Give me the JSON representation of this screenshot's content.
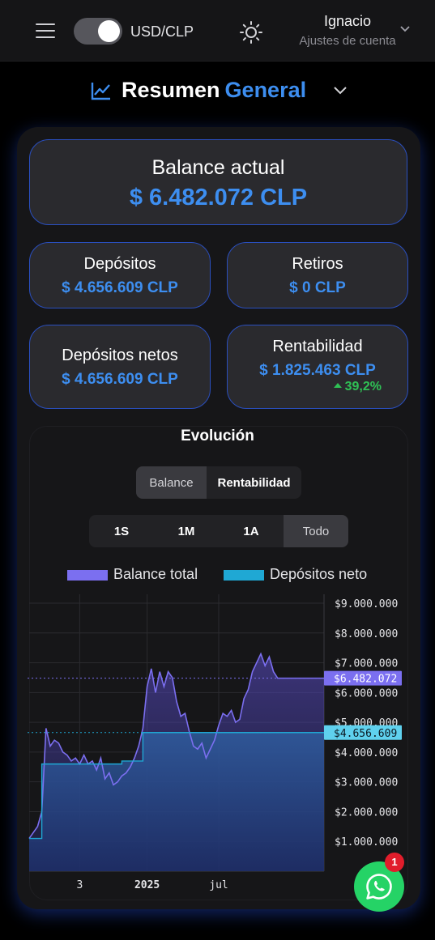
{
  "header": {
    "currency_label": "USD/CLP",
    "user_name": "Ignacio",
    "account_settings": "Ajustes de cuenta",
    "icons": [
      "menu-icon",
      "sun-icon",
      "chevron-down-icon"
    ]
  },
  "title": {
    "part1": "Resumen",
    "part2": "General",
    "icon": "trend-line-icon",
    "accent_color": "#3d8ef0"
  },
  "stats": {
    "balance": {
      "label": "Balance actual",
      "value": "$ 6.482.072 CLP"
    },
    "deposits": {
      "label": "Depósitos",
      "value": "$ 4.656.609 CLP"
    },
    "withdrawals": {
      "label": "Retiros",
      "value": "$ 0 CLP"
    },
    "net_deposits": {
      "label": "Depósitos netos",
      "value": "$ 4.656.609 CLP"
    },
    "profitability": {
      "label": "Rentabilidad",
      "value": "$ 1.825.463 CLP",
      "change": "39,2%",
      "change_color": "#2fc155"
    }
  },
  "evolution": {
    "title": "Evolución",
    "view_tabs": [
      "Balance",
      "Rentabilidad"
    ],
    "active_view": "Balance",
    "range_tabs": [
      "1S",
      "1M",
      "1A",
      "Todo"
    ],
    "active_range": "Todo",
    "legend": [
      {
        "label": "Balance total",
        "color": "#7b6ff0"
      },
      {
        "label": "Depósitos neto",
        "color": "#1fa8d4"
      }
    ]
  },
  "chart_data": {
    "type": "area",
    "x_tick_labels": [
      "3",
      "2025",
      "jul"
    ],
    "y_tick_labels": [
      "$9.000.000",
      "$8.000.000",
      "$7.000.000",
      "$6.000.000",
      "$5.000.000",
      "$4.000.000",
      "$3.000.000",
      "$2.000.000",
      "$1.000.000"
    ],
    "ylim": [
      0,
      9300000
    ],
    "grid": true,
    "series": [
      {
        "name": "Balance total",
        "color": "#7b6ff0",
        "last_value_label": "$6.482.072",
        "last_value": 6482072,
        "x": [
          0,
          1,
          2,
          3,
          4,
          5,
          6,
          7,
          8,
          9,
          10,
          11,
          12,
          13,
          14,
          15,
          16,
          17,
          18,
          19,
          20,
          21,
          22,
          23,
          24,
          25,
          26,
          27,
          28,
          29,
          30,
          31,
          32,
          33,
          34,
          35,
          36,
          37,
          38,
          39,
          40,
          41,
          42,
          43,
          44,
          45,
          46,
          47,
          48,
          49,
          50,
          51,
          52,
          53,
          54,
          55,
          56,
          57,
          58,
          59,
          60,
          61,
          62,
          63,
          64,
          65,
          66,
          67,
          68,
          69,
          70
        ],
        "values": [
          1100000,
          1300000,
          1500000,
          2000000,
          4800000,
          4200000,
          4400000,
          4300000,
          4000000,
          3900000,
          3700000,
          3800000,
          3600000,
          3900000,
          3600000,
          3700000,
          3400000,
          3800000,
          3100000,
          3300000,
          2900000,
          3000000,
          3200000,
          3300000,
          3500000,
          3800000,
          4200000,
          4800000,
          6200000,
          6800000,
          6000000,
          6700000,
          6200000,
          6700000,
          6500000,
          5700000,
          5200000,
          5300000,
          4700000,
          4200000,
          4100000,
          4300000,
          3800000,
          4100000,
          4400000,
          4900000,
          5300000,
          5200000,
          5400000,
          5000000,
          5100000,
          5800000,
          6100000,
          6700000,
          7000000,
          7300000,
          6900000,
          7200000,
          6700000,
          6482072,
          6482072,
          6482072,
          6482072,
          6482072,
          6482072,
          6482072,
          6482072,
          6482072,
          6482072,
          6482072,
          6482072
        ]
      },
      {
        "name": "Depósitos neto",
        "color": "#1fa8d4",
        "last_value_label": "$4.656.609",
        "last_value": 4656609,
        "x": [
          0,
          1,
          2,
          3,
          4,
          5,
          6,
          7,
          8,
          9,
          10,
          11,
          12,
          13,
          14,
          15,
          16,
          17,
          18,
          19,
          20,
          21,
          22,
          23,
          24,
          25,
          26,
          27,
          28,
          29,
          30,
          31,
          32,
          33,
          34,
          35,
          36,
          37,
          38,
          39,
          40,
          41,
          42,
          43,
          44,
          45,
          46,
          47,
          48,
          49,
          50,
          51,
          52,
          53,
          54,
          55,
          56,
          57,
          58,
          59,
          60,
          61,
          62,
          63,
          64,
          65,
          66,
          67,
          68,
          69,
          70
        ],
        "values": [
          1100000,
          1100000,
          1100000,
          3600000,
          3600000,
          3600000,
          3600000,
          3600000,
          3600000,
          3600000,
          3600000,
          3600000,
          3600000,
          3600000,
          3600000,
          3600000,
          3600000,
          3600000,
          3600000,
          3600000,
          3600000,
          3600000,
          3700000,
          3700000,
          3700000,
          3700000,
          3700000,
          4656609,
          4656609,
          4656609,
          4656609,
          4656609,
          4656609,
          4656609,
          4656609,
          4656609,
          4656609,
          4656609,
          4656609,
          4656609,
          4656609,
          4656609,
          4656609,
          4656609,
          4656609,
          4656609,
          4656609,
          4656609,
          4656609,
          4656609,
          4656609,
          4656609,
          4656609,
          4656609,
          4656609,
          4656609,
          4656609,
          4656609,
          4656609,
          4656609,
          4656609,
          4656609,
          4656609,
          4656609,
          4656609,
          4656609,
          4656609,
          4656609,
          4656609,
          4656609,
          4656609
        ]
      }
    ]
  },
  "whatsapp": {
    "badge_count": "1",
    "icon": "whatsapp-icon"
  }
}
